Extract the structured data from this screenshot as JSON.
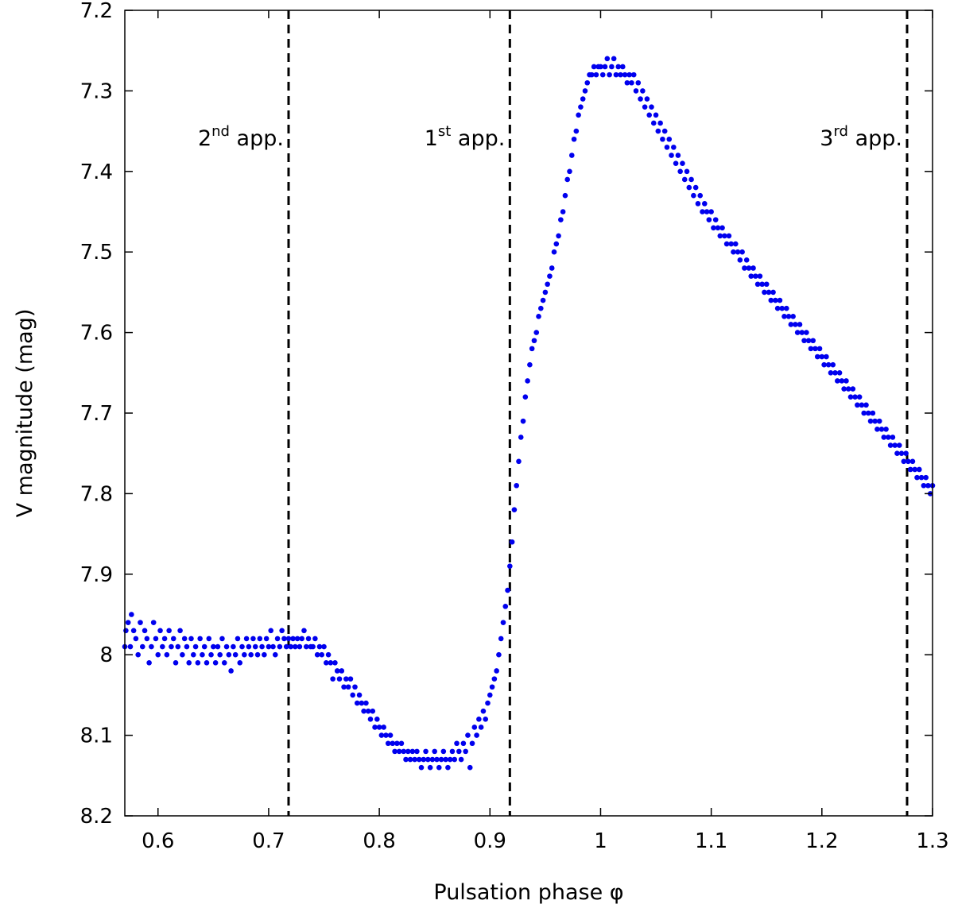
{
  "chart_data": {
    "type": "scatter",
    "xlabel": "Pulsation phase φ",
    "ylabel": "V magnitude (mag)",
    "xlim": [
      0.57,
      1.3
    ],
    "ylim": [
      7.2,
      8.2
    ],
    "y_inverted": true,
    "xticks": [
      {
        "value": 0.6,
        "label": "0.6"
      },
      {
        "value": 0.7,
        "label": "0.7"
      },
      {
        "value": 0.8,
        "label": "0.8"
      },
      {
        "value": 0.9,
        "label": "0.9"
      },
      {
        "value": 1.0,
        "label": "1"
      },
      {
        "value": 1.1,
        "label": "1.1"
      },
      {
        "value": 1.2,
        "label": "1.2"
      },
      {
        "value": 1.3,
        "label": "1.3"
      }
    ],
    "yticks": [
      {
        "value": 7.2,
        "label": "7.2"
      },
      {
        "value": 7.3,
        "label": "7.3"
      },
      {
        "value": 7.4,
        "label": "7.4"
      },
      {
        "value": 7.5,
        "label": "7.5"
      },
      {
        "value": 7.6,
        "label": "7.6"
      },
      {
        "value": 7.7,
        "label": "7.7"
      },
      {
        "value": 7.8,
        "label": "7.8"
      },
      {
        "value": 7.9,
        "label": "7.9"
      },
      {
        "value": 8.0,
        "label": "8"
      },
      {
        "value": 8.1,
        "label": "8.1"
      },
      {
        "value": 8.2,
        "label": "8.2"
      }
    ],
    "vlines": [
      {
        "x": 0.718,
        "label_main": "2",
        "label_sup": "nd",
        "label_rest": " app."
      },
      {
        "x": 0.918,
        "label_main": "1",
        "label_sup": "st",
        "label_rest": " app."
      },
      {
        "x": 1.277,
        "label_main": "3",
        "label_sup": "rd",
        "label_rest": " app."
      }
    ],
    "marker_color": "#0000ee",
    "vline_color": "#000000",
    "points": [
      [
        0.57,
        7.99
      ],
      [
        0.571,
        7.97
      ],
      [
        0.573,
        7.96
      ],
      [
        0.575,
        7.99
      ],
      [
        0.576,
        7.95
      ],
      [
        0.578,
        7.97
      ],
      [
        0.58,
        7.98
      ],
      [
        0.582,
        8.0
      ],
      [
        0.584,
        7.96
      ],
      [
        0.586,
        7.99
      ],
      [
        0.588,
        7.97
      ],
      [
        0.59,
        7.98
      ],
      [
        0.592,
        8.01
      ],
      [
        0.594,
        7.99
      ],
      [
        0.596,
        7.96
      ],
      [
        0.598,
        7.98
      ],
      [
        0.6,
        8.0
      ],
      [
        0.602,
        7.97
      ],
      [
        0.604,
        7.99
      ],
      [
        0.606,
        7.98
      ],
      [
        0.608,
        8.0
      ],
      [
        0.61,
        7.97
      ],
      [
        0.612,
        7.99
      ],
      [
        0.614,
        7.98
      ],
      [
        0.616,
        8.01
      ],
      [
        0.618,
        7.99
      ],
      [
        0.62,
        7.97
      ],
      [
        0.622,
        8.0
      ],
      [
        0.624,
        7.98
      ],
      [
        0.626,
        7.99
      ],
      [
        0.628,
        8.01
      ],
      [
        0.63,
        7.98
      ],
      [
        0.632,
        8.0
      ],
      [
        0.634,
        7.99
      ],
      [
        0.636,
        8.01
      ],
      [
        0.638,
        7.98
      ],
      [
        0.64,
        8.0
      ],
      [
        0.642,
        7.99
      ],
      [
        0.644,
        8.01
      ],
      [
        0.646,
        7.98
      ],
      [
        0.648,
        8.0
      ],
      [
        0.65,
        7.99
      ],
      [
        0.652,
        8.01
      ],
      [
        0.654,
        7.99
      ],
      [
        0.656,
        8.0
      ],
      [
        0.658,
        7.98
      ],
      [
        0.66,
        8.01
      ],
      [
        0.662,
        7.99
      ],
      [
        0.664,
        8.0
      ],
      [
        0.666,
        8.02
      ],
      [
        0.668,
        7.99
      ],
      [
        0.67,
        8.0
      ],
      [
        0.672,
        7.98
      ],
      [
        0.674,
        8.01
      ],
      [
        0.676,
        7.99
      ],
      [
        0.678,
        8.0
      ],
      [
        0.68,
        7.98
      ],
      [
        0.682,
        7.99
      ],
      [
        0.684,
        8.0
      ],
      [
        0.686,
        7.98
      ],
      [
        0.688,
        7.99
      ],
      [
        0.69,
        8.0
      ],
      [
        0.692,
        7.98
      ],
      [
        0.694,
        7.99
      ],
      [
        0.696,
        8.0
      ],
      [
        0.698,
        7.98
      ],
      [
        0.7,
        7.99
      ],
      [
        0.702,
        7.97
      ],
      [
        0.704,
        7.99
      ],
      [
        0.706,
        8.0
      ],
      [
        0.708,
        7.98
      ],
      [
        0.71,
        7.99
      ],
      [
        0.712,
        7.97
      ],
      [
        0.714,
        7.98
      ],
      [
        0.716,
        7.99
      ],
      [
        0.718,
        7.98
      ],
      [
        0.72,
        7.99
      ],
      [
        0.722,
        7.98
      ],
      [
        0.724,
        7.99
      ],
      [
        0.726,
        7.98
      ],
      [
        0.728,
        7.99
      ],
      [
        0.73,
        7.98
      ],
      [
        0.732,
        7.97
      ],
      [
        0.734,
        7.99
      ],
      [
        0.736,
        7.98
      ],
      [
        0.738,
        7.99
      ],
      [
        0.74,
        7.99
      ],
      [
        0.742,
        7.98
      ],
      [
        0.744,
        8.0
      ],
      [
        0.746,
        7.99
      ],
      [
        0.748,
        8.0
      ],
      [
        0.75,
        7.99
      ],
      [
        0.752,
        8.01
      ],
      [
        0.754,
        8.0
      ],
      [
        0.756,
        8.01
      ],
      [
        0.758,
        8.03
      ],
      [
        0.76,
        8.01
      ],
      [
        0.762,
        8.02
      ],
      [
        0.764,
        8.03
      ],
      [
        0.766,
        8.02
      ],
      [
        0.768,
        8.04
      ],
      [
        0.77,
        8.03
      ],
      [
        0.772,
        8.04
      ],
      [
        0.774,
        8.03
      ],
      [
        0.776,
        8.05
      ],
      [
        0.778,
        8.04
      ],
      [
        0.78,
        8.06
      ],
      [
        0.782,
        8.05
      ],
      [
        0.784,
        8.06
      ],
      [
        0.786,
        8.07
      ],
      [
        0.788,
        8.06
      ],
      [
        0.79,
        8.07
      ],
      [
        0.792,
        8.08
      ],
      [
        0.794,
        8.07
      ],
      [
        0.796,
        8.09
      ],
      [
        0.798,
        8.08
      ],
      [
        0.8,
        8.09
      ],
      [
        0.802,
        8.1
      ],
      [
        0.804,
        8.09
      ],
      [
        0.806,
        8.1
      ],
      [
        0.808,
        8.11
      ],
      [
        0.81,
        8.1
      ],
      [
        0.812,
        8.11
      ],
      [
        0.814,
        8.12
      ],
      [
        0.816,
        8.11
      ],
      [
        0.818,
        8.12
      ],
      [
        0.82,
        8.11
      ],
      [
        0.822,
        8.12
      ],
      [
        0.824,
        8.13
      ],
      [
        0.826,
        8.12
      ],
      [
        0.828,
        8.13
      ],
      [
        0.83,
        8.12
      ],
      [
        0.832,
        8.13
      ],
      [
        0.834,
        8.12
      ],
      [
        0.836,
        8.13
      ],
      [
        0.838,
        8.14
      ],
      [
        0.84,
        8.13
      ],
      [
        0.842,
        8.12
      ],
      [
        0.844,
        8.13
      ],
      [
        0.846,
        8.14
      ],
      [
        0.848,
        8.13
      ],
      [
        0.85,
        8.12
      ],
      [
        0.852,
        8.13
      ],
      [
        0.854,
        8.14
      ],
      [
        0.856,
        8.13
      ],
      [
        0.858,
        8.12
      ],
      [
        0.86,
        8.13
      ],
      [
        0.862,
        8.14
      ],
      [
        0.864,
        8.13
      ],
      [
        0.866,
        8.12
      ],
      [
        0.868,
        8.13
      ],
      [
        0.87,
        8.11
      ],
      [
        0.872,
        8.12
      ],
      [
        0.874,
        8.13
      ],
      [
        0.876,
        8.11
      ],
      [
        0.878,
        8.12
      ],
      [
        0.88,
        8.1
      ],
      [
        0.882,
        8.14
      ],
      [
        0.884,
        8.11
      ],
      [
        0.886,
        8.09
      ],
      [
        0.888,
        8.1
      ],
      [
        0.89,
        8.08
      ],
      [
        0.892,
        8.09
      ],
      [
        0.894,
        8.07
      ],
      [
        0.896,
        8.08
      ],
      [
        0.898,
        8.06
      ],
      [
        0.9,
        8.05
      ],
      [
        0.902,
        8.04
      ],
      [
        0.904,
        8.03
      ],
      [
        0.906,
        8.02
      ],
      [
        0.908,
        8.0
      ],
      [
        0.91,
        7.98
      ],
      [
        0.912,
        7.96
      ],
      [
        0.914,
        7.94
      ],
      [
        0.916,
        7.92
      ],
      [
        0.918,
        7.89
      ],
      [
        0.92,
        7.86
      ],
      [
        0.922,
        7.82
      ],
      [
        0.924,
        7.79
      ],
      [
        0.926,
        7.76
      ],
      [
        0.928,
        7.73
      ],
      [
        0.93,
        7.71
      ],
      [
        0.932,
        7.68
      ],
      [
        0.934,
        7.66
      ],
      [
        0.936,
        7.64
      ],
      [
        0.938,
        7.62
      ],
      [
        0.94,
        7.61
      ],
      [
        0.942,
        7.6
      ],
      [
        0.944,
        7.58
      ],
      [
        0.946,
        7.57
      ],
      [
        0.948,
        7.56
      ],
      [
        0.95,
        7.55
      ],
      [
        0.952,
        7.54
      ],
      [
        0.954,
        7.53
      ],
      [
        0.956,
        7.52
      ],
      [
        0.958,
        7.5
      ],
      [
        0.96,
        7.49
      ],
      [
        0.962,
        7.48
      ],
      [
        0.964,
        7.46
      ],
      [
        0.966,
        7.45
      ],
      [
        0.968,
        7.43
      ],
      [
        0.97,
        7.41
      ],
      [
        0.972,
        7.4
      ],
      [
        0.974,
        7.38
      ],
      [
        0.976,
        7.36
      ],
      [
        0.978,
        7.35
      ],
      [
        0.98,
        7.33
      ],
      [
        0.982,
        7.32
      ],
      [
        0.984,
        7.31
      ],
      [
        0.986,
        7.3
      ],
      [
        0.988,
        7.29
      ],
      [
        0.99,
        7.28
      ],
      [
        0.992,
        7.28
      ],
      [
        0.994,
        7.27
      ],
      [
        0.996,
        7.28
      ],
      [
        0.998,
        7.27
      ],
      [
        1.0,
        7.27
      ],
      [
        1.002,
        7.28
      ],
      [
        1.004,
        7.27
      ],
      [
        1.006,
        7.26
      ],
      [
        1.008,
        7.28
      ],
      [
        1.01,
        7.27
      ],
      [
        1.012,
        7.26
      ],
      [
        1.014,
        7.28
      ],
      [
        1.016,
        7.27
      ],
      [
        1.018,
        7.28
      ],
      [
        1.02,
        7.27
      ],
      [
        1.022,
        7.28
      ],
      [
        1.024,
        7.29
      ],
      [
        1.026,
        7.28
      ],
      [
        1.028,
        7.29
      ],
      [
        1.03,
        7.28
      ],
      [
        1.032,
        7.3
      ],
      [
        1.034,
        7.29
      ],
      [
        1.036,
        7.31
      ],
      [
        1.038,
        7.3
      ],
      [
        1.04,
        7.32
      ],
      [
        1.042,
        7.31
      ],
      [
        1.044,
        7.33
      ],
      [
        1.046,
        7.32
      ],
      [
        1.048,
        7.34
      ],
      [
        1.05,
        7.33
      ],
      [
        1.052,
        7.35
      ],
      [
        1.054,
        7.34
      ],
      [
        1.056,
        7.36
      ],
      [
        1.058,
        7.35
      ],
      [
        1.06,
        7.37
      ],
      [
        1.062,
        7.36
      ],
      [
        1.064,
        7.38
      ],
      [
        1.066,
        7.37
      ],
      [
        1.068,
        7.39
      ],
      [
        1.07,
        7.38
      ],
      [
        1.072,
        7.4
      ],
      [
        1.074,
        7.39
      ],
      [
        1.076,
        7.41
      ],
      [
        1.078,
        7.4
      ],
      [
        1.08,
        7.42
      ],
      [
        1.082,
        7.41
      ],
      [
        1.084,
        7.43
      ],
      [
        1.086,
        7.42
      ],
      [
        1.088,
        7.44
      ],
      [
        1.09,
        7.43
      ],
      [
        1.092,
        7.45
      ],
      [
        1.094,
        7.44
      ],
      [
        1.096,
        7.45
      ],
      [
        1.098,
        7.46
      ],
      [
        1.1,
        7.45
      ],
      [
        1.102,
        7.47
      ],
      [
        1.104,
        7.46
      ],
      [
        1.106,
        7.47
      ],
      [
        1.108,
        7.48
      ],
      [
        1.11,
        7.47
      ],
      [
        1.112,
        7.48
      ],
      [
        1.114,
        7.49
      ],
      [
        1.116,
        7.48
      ],
      [
        1.118,
        7.49
      ],
      [
        1.12,
        7.5
      ],
      [
        1.122,
        7.49
      ],
      [
        1.124,
        7.5
      ],
      [
        1.126,
        7.51
      ],
      [
        1.128,
        7.5
      ],
      [
        1.13,
        7.52
      ],
      [
        1.132,
        7.51
      ],
      [
        1.134,
        7.52
      ],
      [
        1.136,
        7.53
      ],
      [
        1.138,
        7.52
      ],
      [
        1.14,
        7.53
      ],
      [
        1.142,
        7.54
      ],
      [
        1.144,
        7.53
      ],
      [
        1.146,
        7.54
      ],
      [
        1.148,
        7.55
      ],
      [
        1.15,
        7.54
      ],
      [
        1.152,
        7.55
      ],
      [
        1.154,
        7.56
      ],
      [
        1.156,
        7.55
      ],
      [
        1.158,
        7.56
      ],
      [
        1.16,
        7.57
      ],
      [
        1.162,
        7.56
      ],
      [
        1.164,
        7.57
      ],
      [
        1.166,
        7.58
      ],
      [
        1.168,
        7.57
      ],
      [
        1.17,
        7.58
      ],
      [
        1.172,
        7.59
      ],
      [
        1.174,
        7.58
      ],
      [
        1.176,
        7.59
      ],
      [
        1.178,
        7.6
      ],
      [
        1.18,
        7.59
      ],
      [
        1.182,
        7.6
      ],
      [
        1.184,
        7.61
      ],
      [
        1.186,
        7.6
      ],
      [
        1.188,
        7.61
      ],
      [
        1.19,
        7.62
      ],
      [
        1.192,
        7.61
      ],
      [
        1.194,
        7.62
      ],
      [
        1.196,
        7.63
      ],
      [
        1.198,
        7.62
      ],
      [
        1.2,
        7.63
      ],
      [
        1.202,
        7.64
      ],
      [
        1.204,
        7.63
      ],
      [
        1.206,
        7.64
      ],
      [
        1.208,
        7.65
      ],
      [
        1.21,
        7.64
      ],
      [
        1.212,
        7.65
      ],
      [
        1.214,
        7.66
      ],
      [
        1.216,
        7.65
      ],
      [
        1.218,
        7.66
      ],
      [
        1.22,
        7.67
      ],
      [
        1.222,
        7.66
      ],
      [
        1.224,
        7.67
      ],
      [
        1.226,
        7.68
      ],
      [
        1.228,
        7.67
      ],
      [
        1.23,
        7.68
      ],
      [
        1.232,
        7.69
      ],
      [
        1.234,
        7.68
      ],
      [
        1.236,
        7.69
      ],
      [
        1.238,
        7.7
      ],
      [
        1.24,
        7.69
      ],
      [
        1.242,
        7.7
      ],
      [
        1.244,
        7.71
      ],
      [
        1.246,
        7.7
      ],
      [
        1.248,
        7.71
      ],
      [
        1.25,
        7.72
      ],
      [
        1.252,
        7.71
      ],
      [
        1.254,
        7.72
      ],
      [
        1.256,
        7.73
      ],
      [
        1.258,
        7.72
      ],
      [
        1.26,
        7.73
      ],
      [
        1.262,
        7.74
      ],
      [
        1.264,
        7.73
      ],
      [
        1.266,
        7.74
      ],
      [
        1.268,
        7.75
      ],
      [
        1.27,
        7.74
      ],
      [
        1.272,
        7.75
      ],
      [
        1.274,
        7.76
      ],
      [
        1.276,
        7.75
      ],
      [
        1.278,
        7.76
      ],
      [
        1.28,
        7.77
      ],
      [
        1.282,
        7.76
      ],
      [
        1.284,
        7.77
      ],
      [
        1.286,
        7.78
      ],
      [
        1.288,
        7.77
      ],
      [
        1.29,
        7.78
      ],
      [
        1.292,
        7.79
      ],
      [
        1.294,
        7.78
      ],
      [
        1.296,
        7.79
      ],
      [
        1.298,
        7.8
      ],
      [
        1.3,
        7.79
      ]
    ]
  }
}
